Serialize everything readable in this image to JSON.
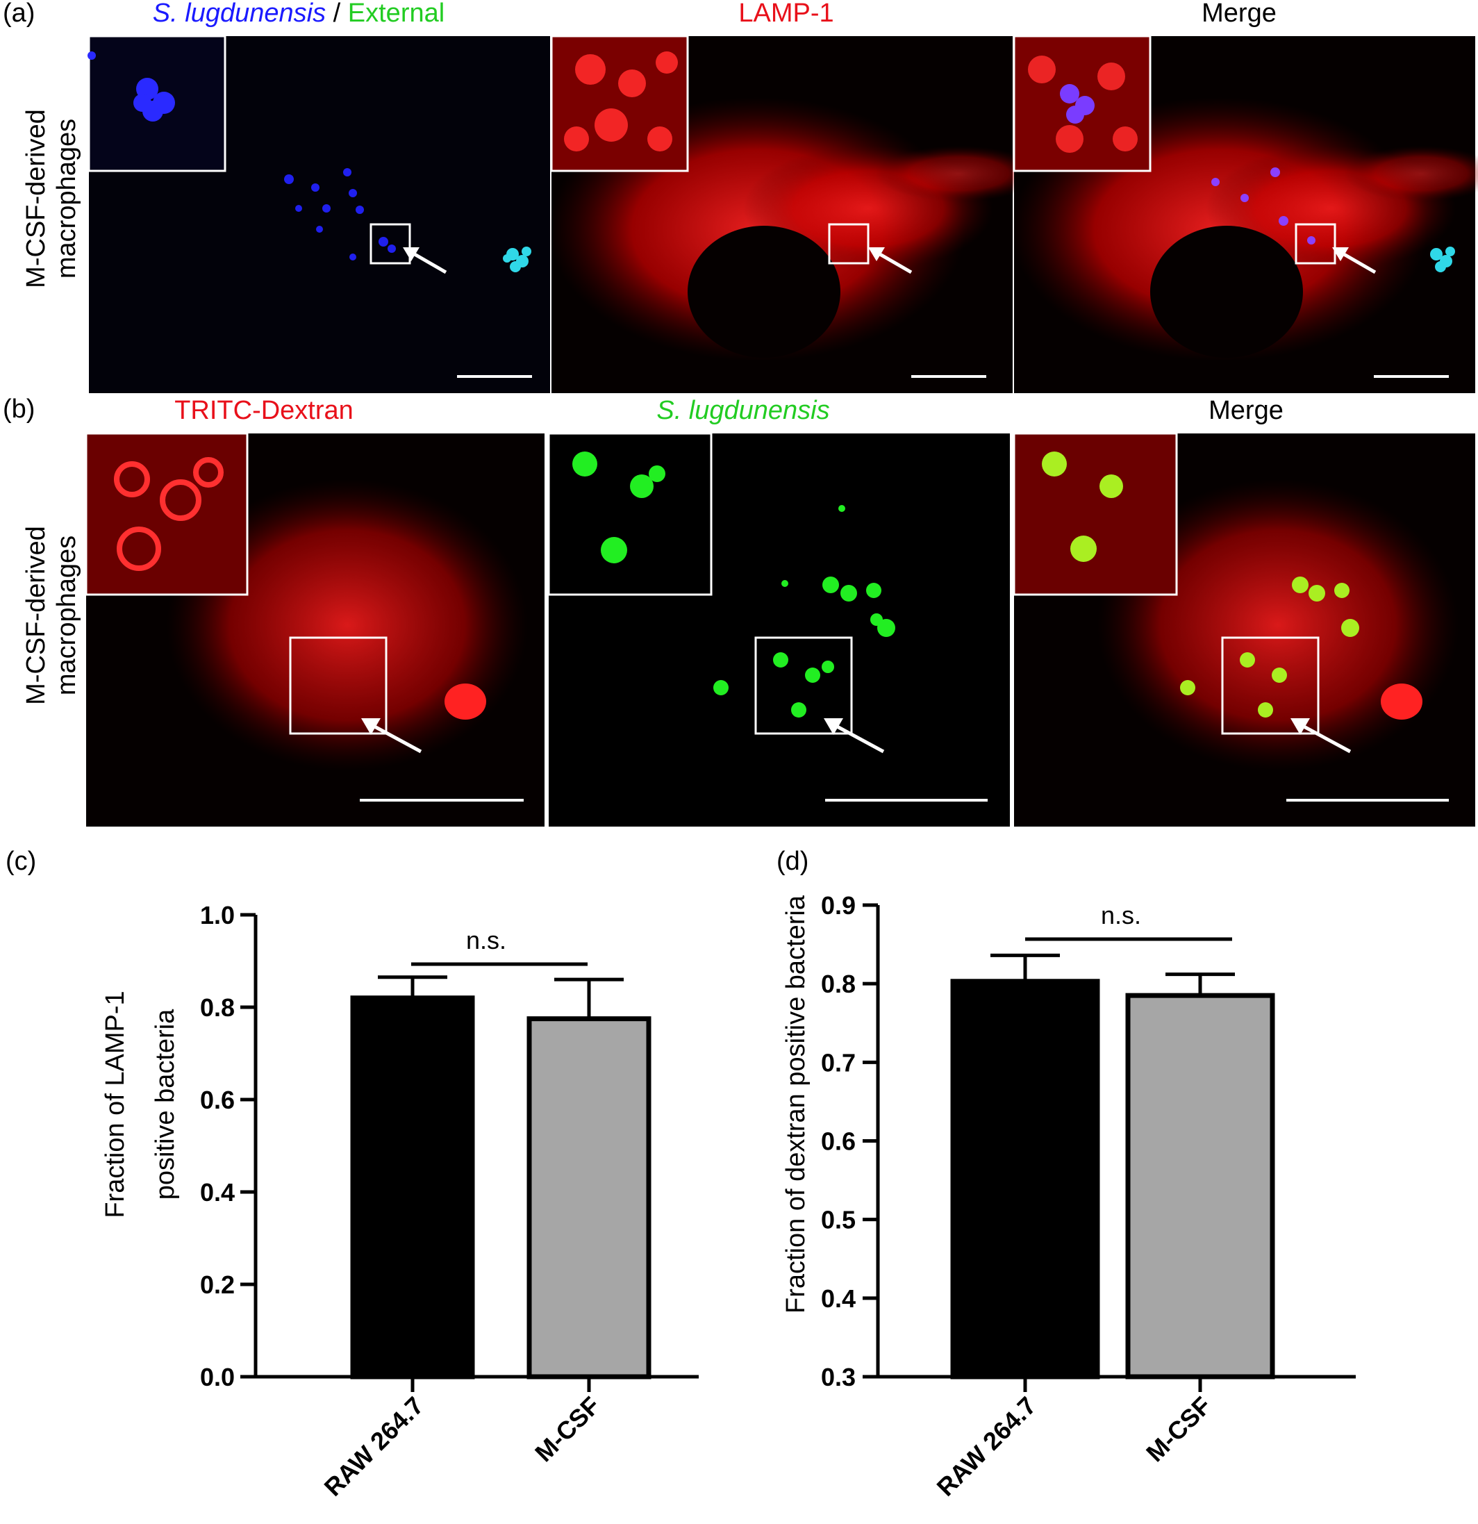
{
  "row_a": {
    "panel_label": "(a)",
    "row_label_line1": "M-CSF-derived",
    "row_label_line2": "macrophages",
    "titles": {
      "ch1_part1": "S. lugdunensis",
      "ch1_sep": " / ",
      "ch1_part2": "External",
      "ch2": "LAMP-1",
      "ch3": "Merge"
    }
  },
  "row_b": {
    "panel_label": "(b)",
    "row_label_line1": "M-CSF-derived",
    "row_label_line2": "macrophages",
    "titles": {
      "ch1": "TRITC-Dextran",
      "ch2": "S. lugdunensis",
      "ch3": "Merge"
    }
  },
  "colors": {
    "blue_text": "#1a1aff",
    "green_text": "#22cc22",
    "red_text": "#e8101a",
    "bar_raw": "#000000",
    "bar_mcsf": "#a6a6a6"
  },
  "chart_data": [
    {
      "panel_label": "(c)",
      "type": "bar",
      "categories": [
        "RAW 264.7",
        "M-CSF"
      ],
      "values": [
        0.82,
        0.775
      ],
      "errors": [
        0.045,
        0.085
      ],
      "ylabel_line1": "Fraction of LAMP-1",
      "ylabel_line2": "positive bacteria",
      "ylim": [
        0.0,
        1.0
      ],
      "yticks": [
        "0.0",
        "0.2",
        "0.4",
        "0.6",
        "0.8",
        "1.0"
      ],
      "significance": "n.s.",
      "grid": false
    },
    {
      "panel_label": "(d)",
      "type": "bar",
      "categories": [
        "RAW 264.7",
        "M-CSF"
      ],
      "values": [
        0.803,
        0.785
      ],
      "errors": [
        0.033,
        0.027
      ],
      "ylabel_line1": "Fraction of dextran positive bacteria",
      "ylim": [
        0.3,
        0.9
      ],
      "yticks": [
        "0.3",
        "0.4",
        "0.5",
        "0.6",
        "0.7",
        "0.8",
        "0.9"
      ],
      "significance": "n.s.",
      "grid": false
    }
  ]
}
